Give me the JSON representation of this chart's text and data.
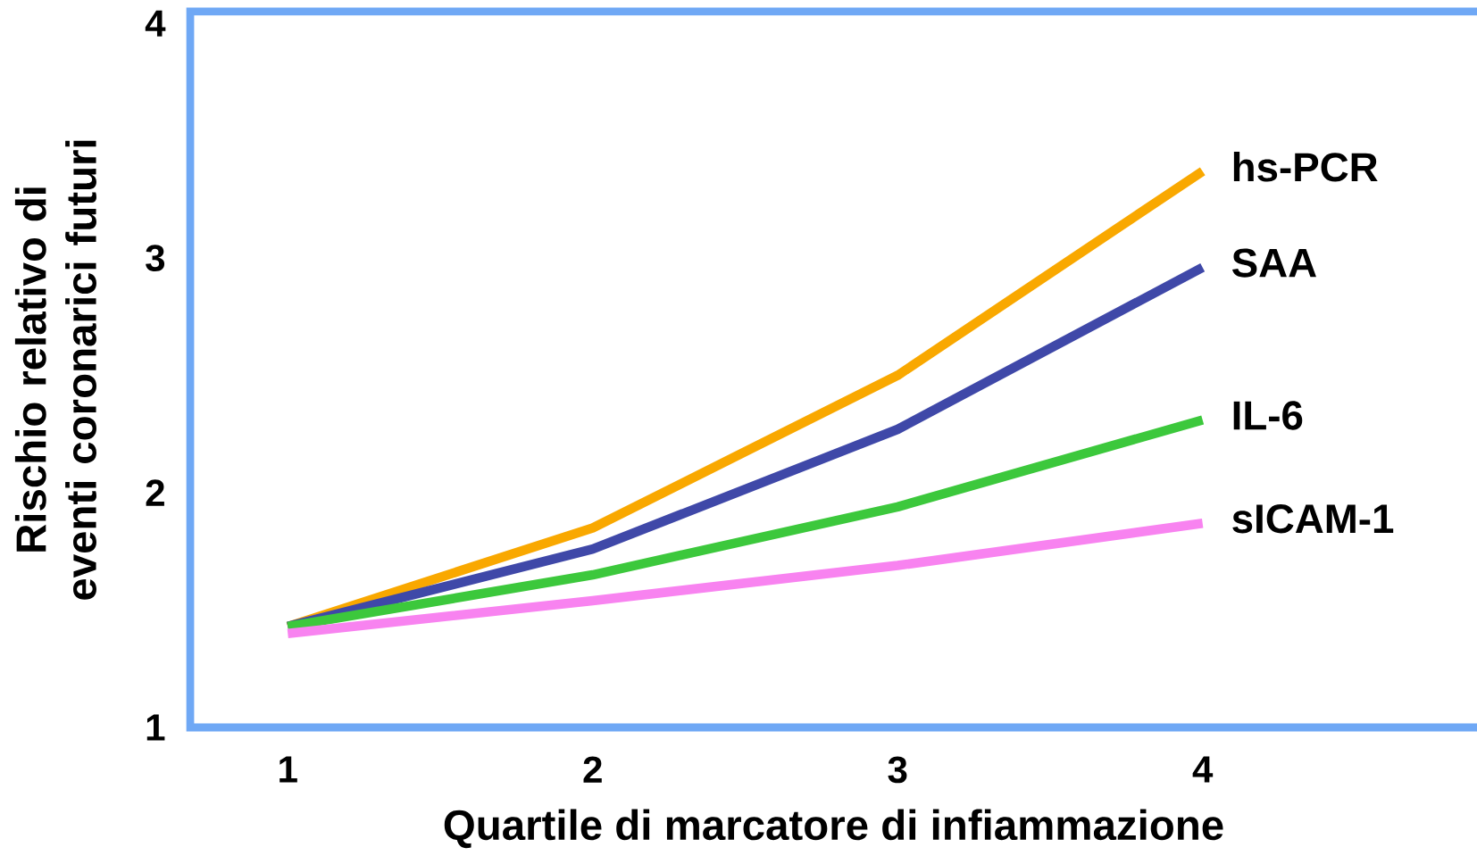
{
  "chart_data": {
    "type": "line",
    "xlabel": "Quartile di marcatore di infiammazione",
    "ylabel": "Rischio relativo di eventi coronarici futuri",
    "x": [
      1,
      2,
      3,
      4
    ],
    "xlim": [
      0.68,
      4.9
    ],
    "ylim": [
      1,
      4.05
    ],
    "xticks": [
      1,
      2,
      3,
      4
    ],
    "yticks": [
      1,
      2,
      3,
      4
    ],
    "grid": false,
    "marker": "none",
    "line_style": "solid",
    "series": [
      {
        "name": "hs-PCR",
        "color": "#f9a800",
        "values": [
          1.43,
          1.85,
          2.5,
          3.37
        ]
      },
      {
        "name": "SAA",
        "color": "#3f48a8",
        "values": [
          1.43,
          1.76,
          2.27,
          2.96
        ]
      },
      {
        "name": "IL-6",
        "color": "#3cc83c",
        "values": [
          1.43,
          1.65,
          1.94,
          2.31
        ]
      },
      {
        "name": "sICAM-1",
        "color": "#f883f0",
        "values": [
          1.4,
          1.54,
          1.69,
          1.87
        ]
      }
    ]
  }
}
